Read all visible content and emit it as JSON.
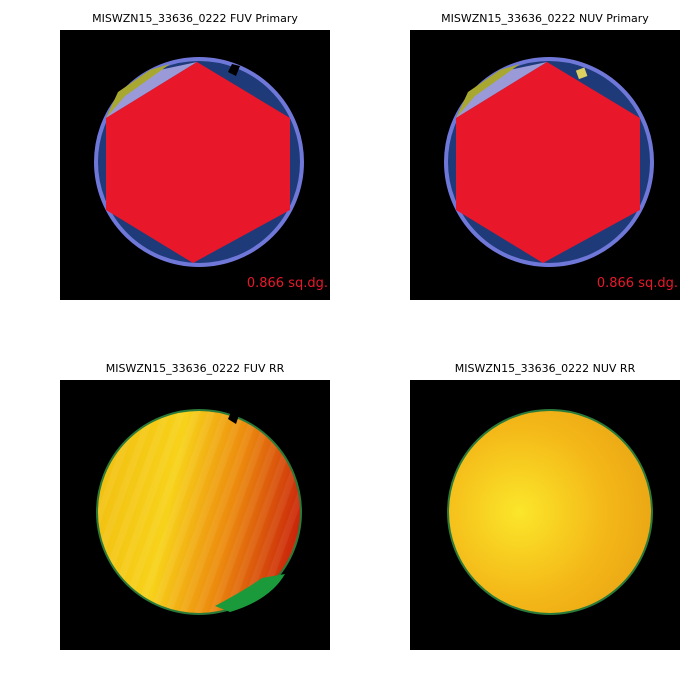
{
  "panels": [
    {
      "title": "MISWZN15_33636_0222 FUV Primary",
      "annotation": "0.866 sq.dg."
    },
    {
      "title": "MISWZN15_33636_0222 NUV Primary",
      "annotation": "0.866 sq.dg."
    },
    {
      "title": "MISWZN15_33636_0222 FUV RR"
    },
    {
      "title": "MISWZN15_33636_0222 NUV RR"
    }
  ]
}
